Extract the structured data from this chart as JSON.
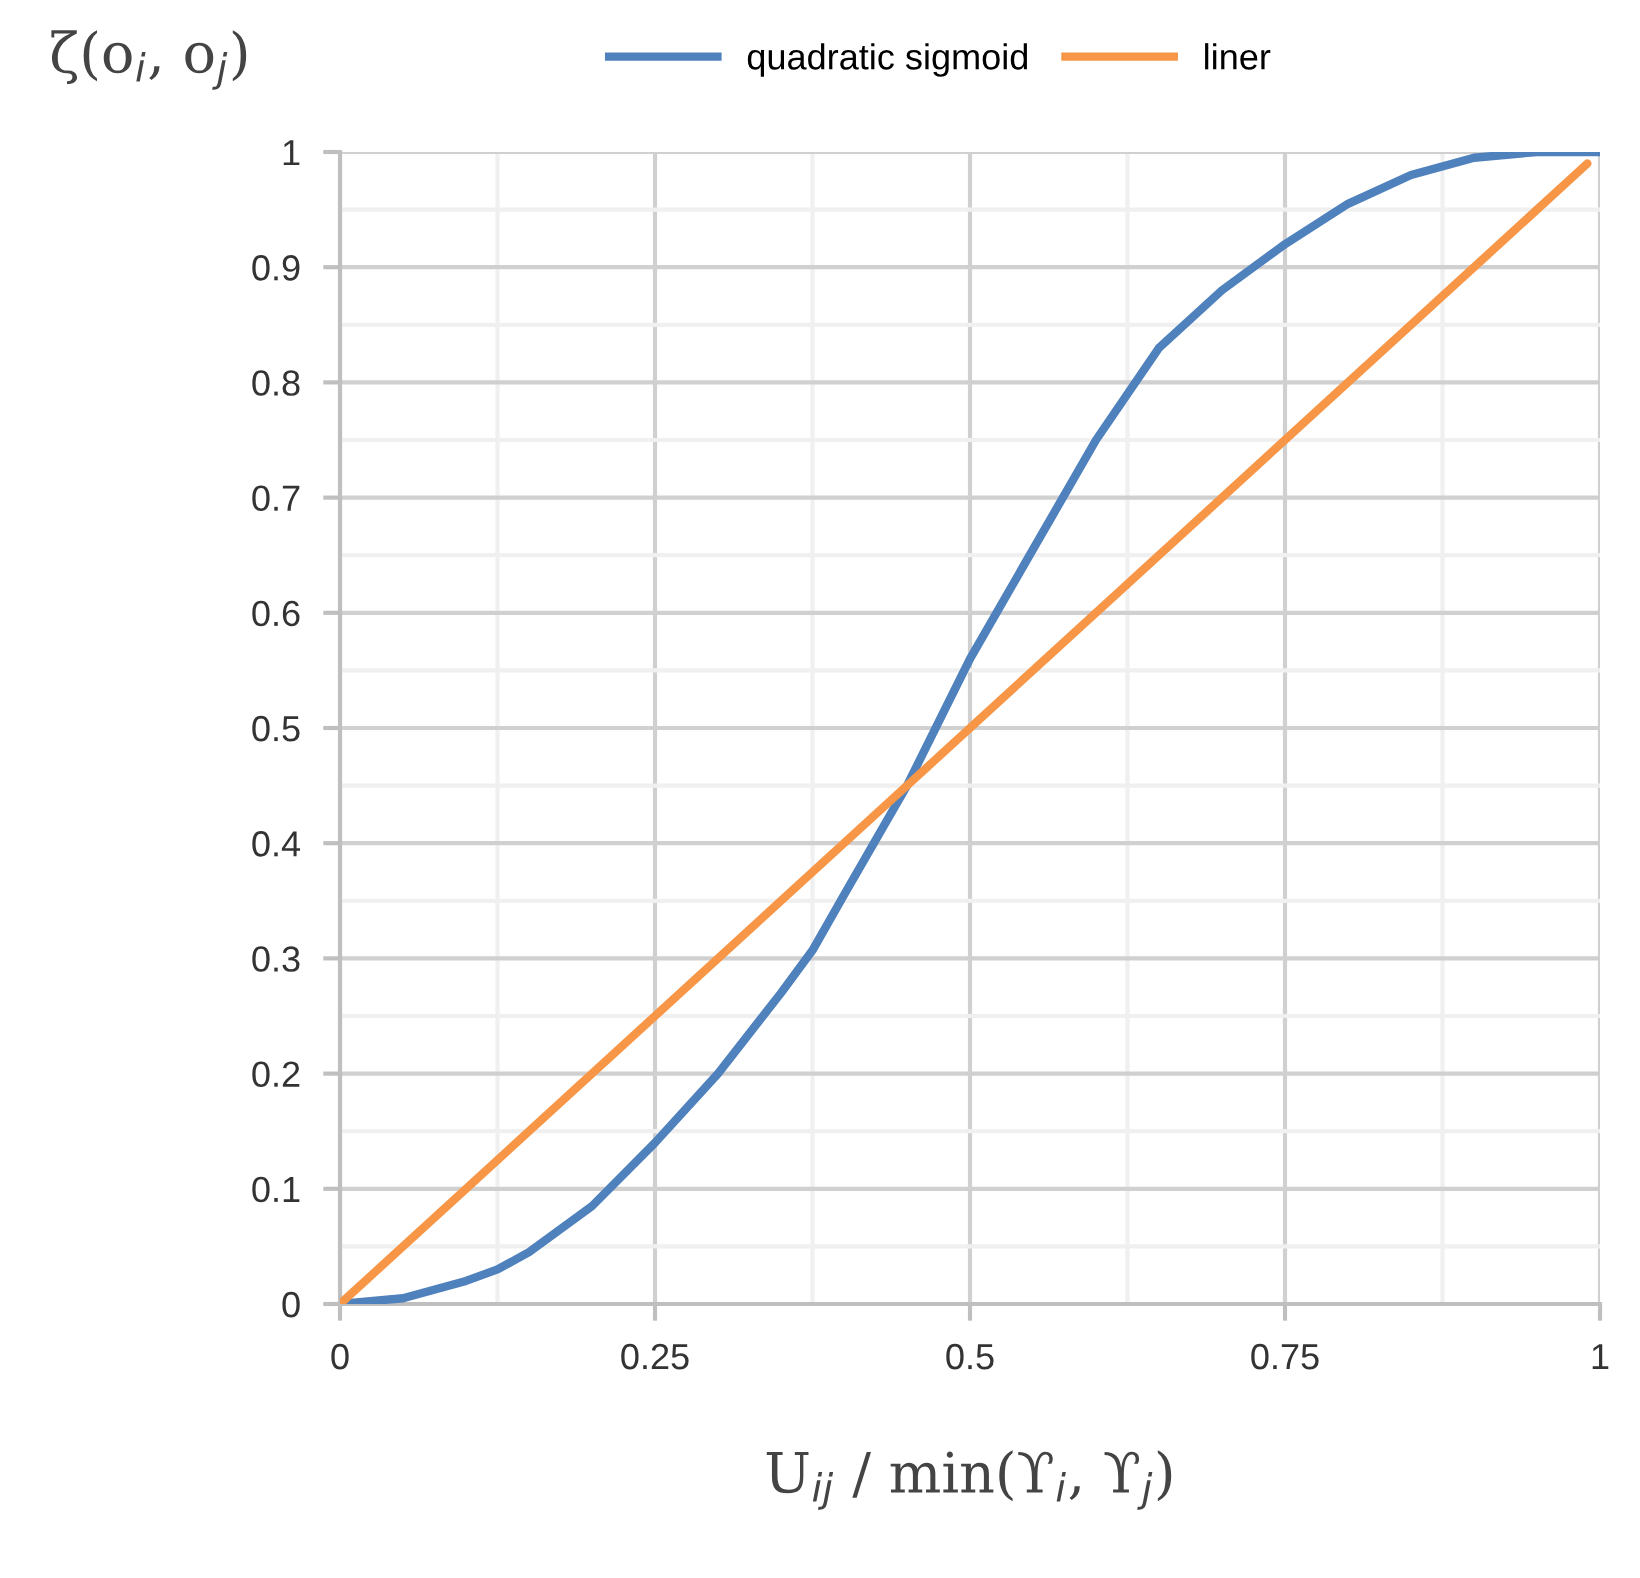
{
  "chart_data": {
    "type": "line",
    "ylabel": "ζ(o$_{i}$, o$_{j}$)",
    "xlabel": "U$_{ij}$ / min(ϒ$_{i}$, ϒ$_{j}$)",
    "series": [
      {
        "name": "quadratic sigmoid",
        "color": "#4f81bd",
        "x": [
          0,
          0.05,
          0.1,
          0.125,
          0.15,
          0.2,
          0.25,
          0.3,
          0.35,
          0.375,
          0.4,
          0.45,
          0.5,
          0.55,
          0.6,
          0.65,
          0.7,
          0.75,
          0.8,
          0.85,
          0.9,
          0.95,
          1
        ],
        "values": [
          0,
          0.005,
          0.02,
          0.03,
          0.045,
          0.085,
          0.14,
          0.2,
          0.27,
          0.307,
          0.355,
          0.45,
          0.56,
          0.655,
          0.75,
          0.83,
          0.88,
          0.92,
          0.955,
          0.98,
          0.995,
          1,
          1
        ]
      },
      {
        "name": "liner",
        "color": "#f79646",
        "x": [
          0,
          0.99
        ],
        "values": [
          0,
          0.99
        ]
      }
    ],
    "xlim": [
      0,
      1
    ],
    "ylim": [
      0,
      1
    ],
    "xticks": [
      0,
      {
        "value": 0.125,
        "label": null
      },
      0.25,
      {
        "value": 0.375,
        "label": null
      },
      0.5,
      {
        "value": 0.625,
        "label": null
      },
      0.75,
      {
        "value": 0.875,
        "label": null
      },
      1
    ],
    "yticks": [
      0,
      {
        "value": 0.05,
        "label": null
      },
      0.1,
      {
        "value": 0.15,
        "label": null
      },
      0.2,
      {
        "value": 0.25,
        "label": null
      },
      0.3,
      {
        "value": 0.35,
        "label": null
      },
      0.4,
      {
        "value": 0.45,
        "label": null
      },
      0.5,
      {
        "value": 0.55,
        "label": null
      },
      0.6,
      {
        "value": 0.65,
        "label": null
      },
      0.7,
      {
        "value": 0.75,
        "label": null
      },
      0.8,
      {
        "value": 0.85,
        "label": null
      },
      0.9,
      {
        "value": 0.95,
        "label": null
      },
      1
    ],
    "grid": true,
    "legend": "top",
    "marker": "none",
    "line_style": "solid"
  }
}
